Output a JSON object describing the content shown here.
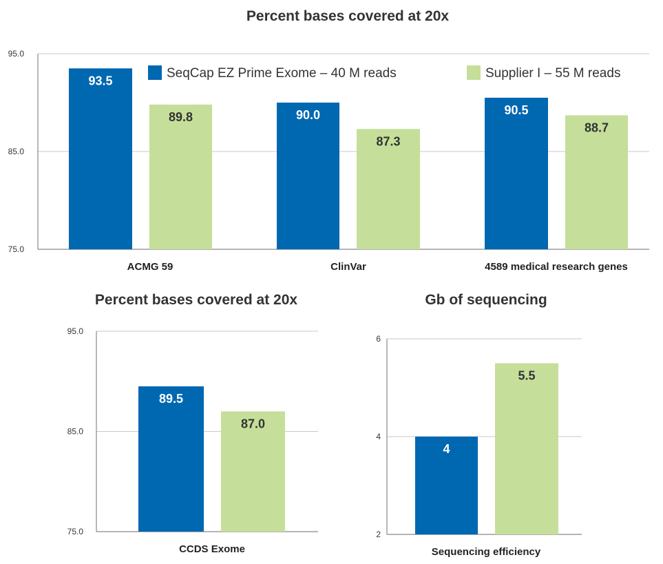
{
  "colors": {
    "series_a": "#0067B1",
    "series_b": "#C5DF9A",
    "label_on_a": "#FFFFFF",
    "label_on_b": "#333333",
    "grid": "#C8C8C8",
    "axis": "#888888"
  },
  "chart_data": [
    {
      "id": "top",
      "type": "bar",
      "title": "Percent bases covered at 20x",
      "xlabel": "",
      "ylabel": "",
      "categories": [
        "ACMG 59",
        "ClinVar",
        "4589 medical research genes"
      ],
      "series": [
        {
          "name": "SeqCap EZ Prime Exome – 40 M reads",
          "values": [
            93.5,
            90.0,
            90.5
          ],
          "labels": [
            "93.5",
            "90.0",
            "90.5"
          ]
        },
        {
          "name": "Supplier I – 55 M reads",
          "values": [
            89.8,
            87.3,
            88.7
          ],
          "labels": [
            "89.8",
            "87.3",
            "88.7"
          ]
        }
      ],
      "ylim": [
        75,
        95
      ],
      "yticks": [
        75,
        85,
        95
      ],
      "ytick_labels": [
        "75.0",
        "85.0",
        "95.0"
      ],
      "grid": true,
      "legend_position": "top"
    },
    {
      "id": "bottom-left",
      "type": "bar",
      "title": "Percent bases covered at 20x",
      "xlabel": "",
      "ylabel": "",
      "categories": [
        "CCDS Exome"
      ],
      "series": [
        {
          "values": [
            89.5
          ],
          "labels": [
            "89.5"
          ]
        },
        {
          "values": [
            87.0
          ],
          "labels": [
            "87.0"
          ]
        }
      ],
      "ylim": [
        75,
        95
      ],
      "yticks": [
        75,
        85,
        95
      ],
      "ytick_labels": [
        "75.0",
        "85.0",
        "95.0"
      ],
      "grid": true
    },
    {
      "id": "bottom-right",
      "type": "bar",
      "title": "Gb of sequencing",
      "xlabel": "",
      "ylabel": "",
      "categories": [
        "Sequencing efficiency"
      ],
      "series": [
        {
          "values": [
            4
          ],
          "labels": [
            "4"
          ]
        },
        {
          "values": [
            5.5
          ],
          "labels": [
            "5.5"
          ]
        }
      ],
      "ylim": [
        2,
        6
      ],
      "yticks": [
        2,
        4,
        6
      ],
      "ytick_labels": [
        "2",
        "4",
        "6"
      ],
      "grid": true
    }
  ]
}
